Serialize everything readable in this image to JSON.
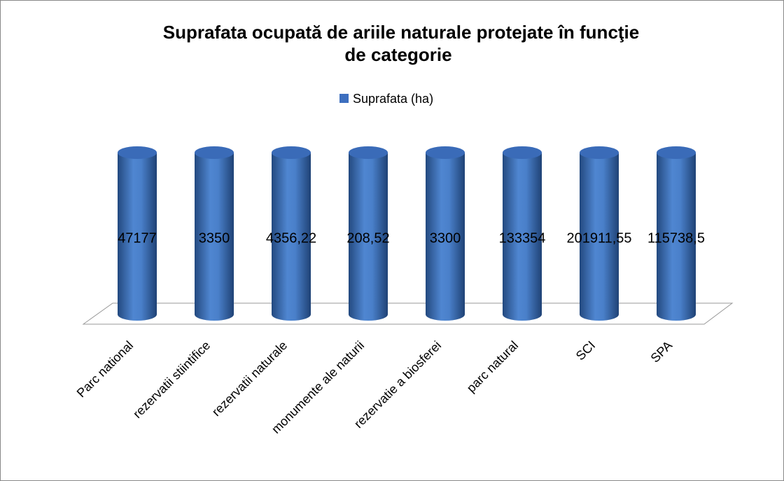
{
  "chart_data": {
    "type": "bar3d-cylinder",
    "title": [
      "Suprafata  ocupată de ariile naturale protejate în funcţie",
      "de categorie"
    ],
    "categories": [
      "Parc national",
      "rezervatii stiintifice",
      "rezervatii naturale",
      "monumente ale naturii",
      "rezervatie a biosferei",
      "parc natural",
      "SCI",
      "SPA"
    ],
    "series": [
      {
        "name": "Suprafata  (ha)",
        "color": "#3d6fbf",
        "values": [
          47177,
          3350,
          4356.22,
          208.52,
          3300,
          133354,
          201911.55,
          115738.5
        ],
        "value_labels": [
          "47177",
          "3350",
          "4356,22",
          "208,52",
          "3300",
          "133354",
          "201911,55",
          "115738,5"
        ]
      }
    ],
    "ylim": [
      0,
      200
    ],
    "legend": "top"
  }
}
